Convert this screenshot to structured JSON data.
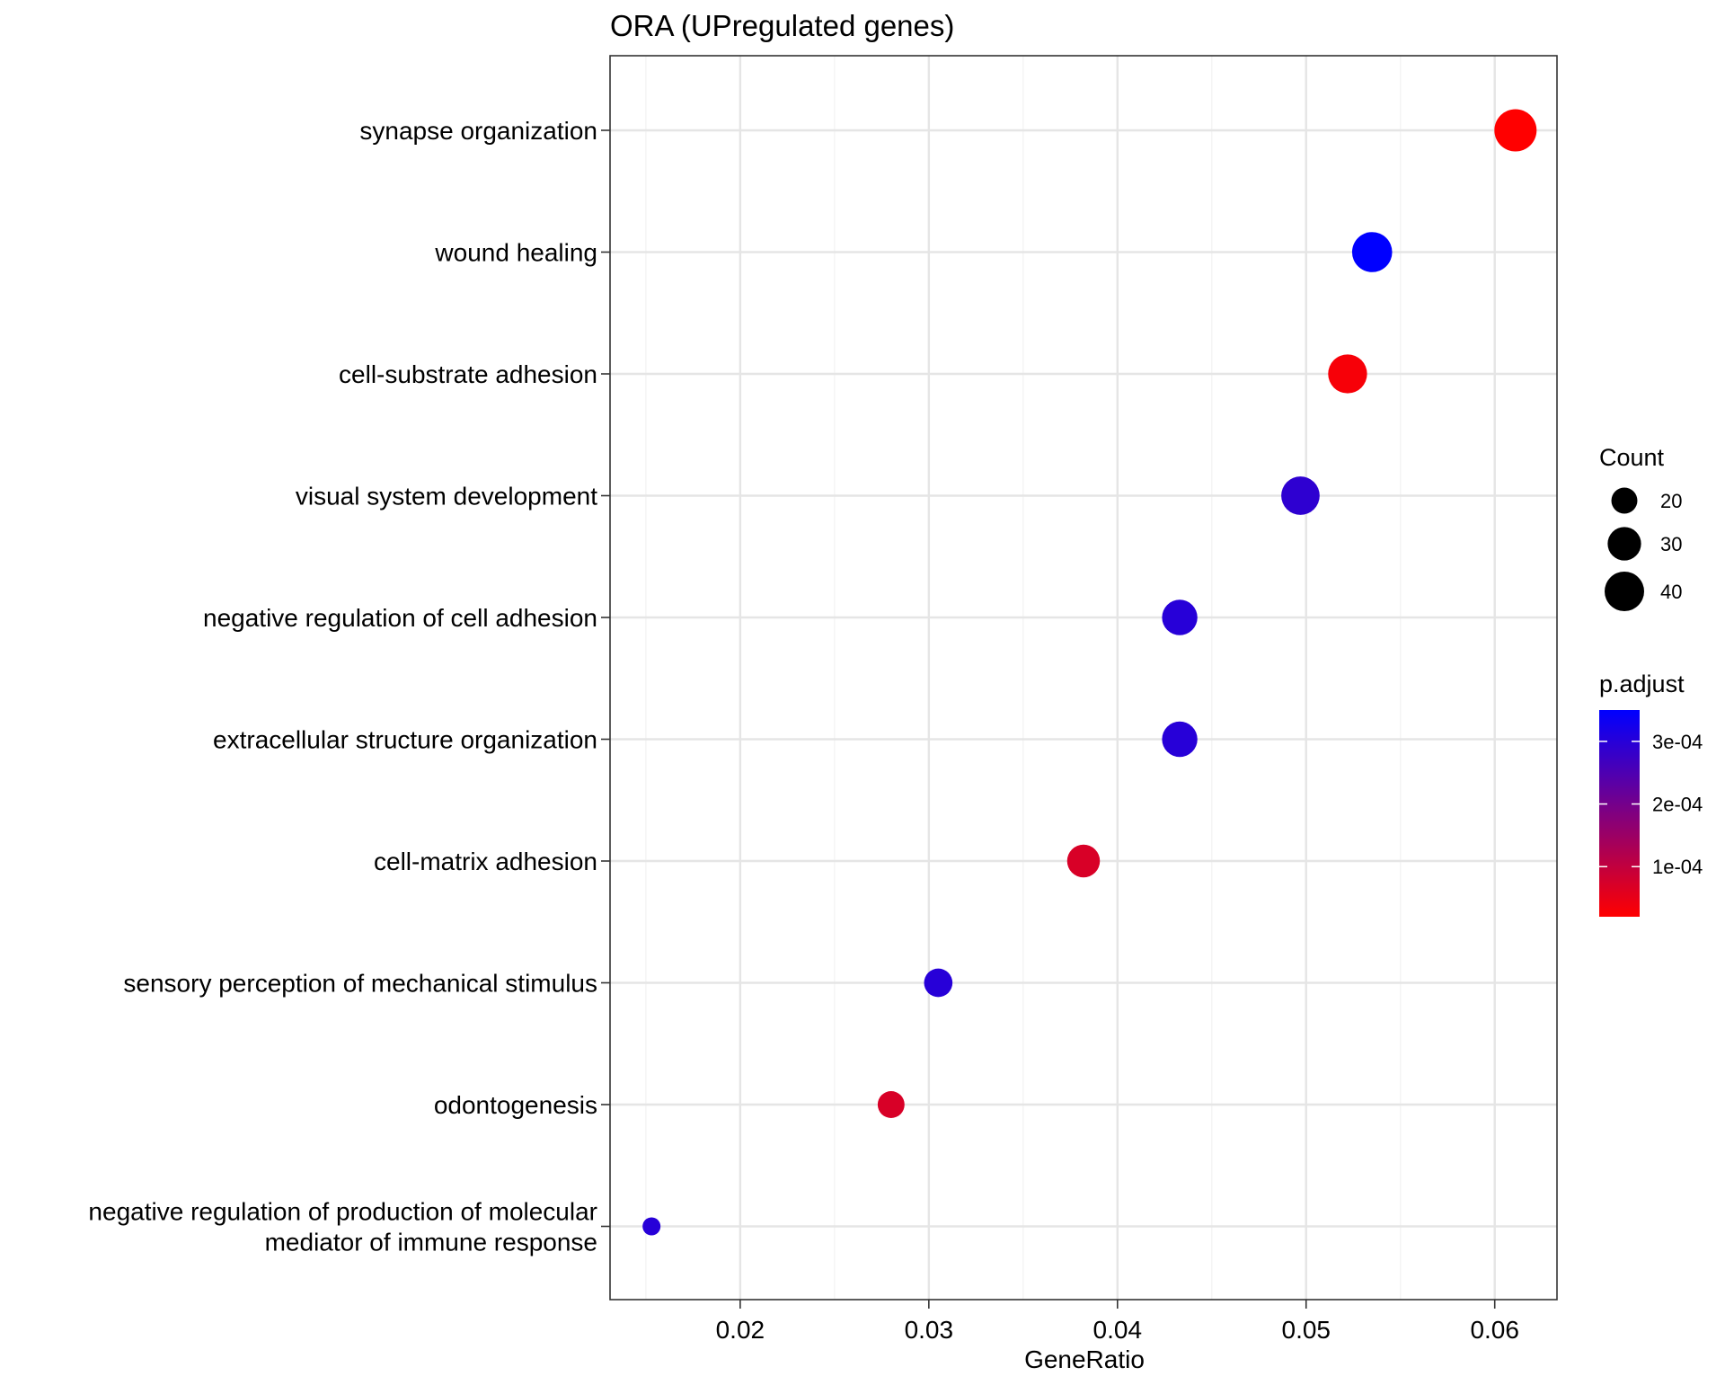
{
  "chart_data": {
    "type": "scatter",
    "title": "ORA (UPregulated genes)",
    "xlabel": "GeneRatio",
    "ylabel": "",
    "xlim": [
      0.0131,
      0.0633
    ],
    "xticks": [
      0.02,
      0.03,
      0.04,
      0.05,
      0.06
    ],
    "xtick_labels": [
      "0.02",
      "0.03",
      "0.04",
      "0.05",
      "0.06"
    ],
    "grid": true,
    "points": [
      {
        "label": "synapse organization",
        "lines": [
          "synapse organization"
        ],
        "gene_ratio": 0.0611,
        "count": 45,
        "p_adjust": 2e-05
      },
      {
        "label": "wound healing",
        "lines": [
          "wound healing"
        ],
        "gene_ratio": 0.0535,
        "count": 41,
        "p_adjust": 0.00035
      },
      {
        "label": "cell-substrate adhesion",
        "lines": [
          "cell-substrate adhesion"
        ],
        "gene_ratio": 0.0522,
        "count": 39,
        "p_adjust": 3e-05
      },
      {
        "label": "visual system development",
        "lines": [
          "visual system development"
        ],
        "gene_ratio": 0.0497,
        "count": 38,
        "p_adjust": 0.00029
      },
      {
        "label": "negative regulation of cell adhesion",
        "lines": [
          "negative regulation of cell adhesion"
        ],
        "gene_ratio": 0.0433,
        "count": 33,
        "p_adjust": 0.0003
      },
      {
        "label": "extracellular structure organization",
        "lines": [
          "extracellular structure organization"
        ],
        "gene_ratio": 0.0433,
        "count": 33,
        "p_adjust": 0.0003
      },
      {
        "label": "cell-matrix adhesion",
        "lines": [
          "cell-matrix adhesion"
        ],
        "gene_ratio": 0.0382,
        "count": 29,
        "p_adjust": 7e-05
      },
      {
        "label": "sensory perception of mechanical stimulus",
        "lines": [
          "sensory perception of mechanical stimulus"
        ],
        "gene_ratio": 0.0305,
        "count": 23,
        "p_adjust": 0.0003
      },
      {
        "label": "odontogenesis",
        "lines": [
          "odontogenesis"
        ],
        "gene_ratio": 0.028,
        "count": 21,
        "p_adjust": 7e-05
      },
      {
        "label": "negative regulation of production of molecular mediator of immune response",
        "lines": [
          "negative regulation of production of molecular",
          "mediator of immune response"
        ],
        "gene_ratio": 0.0153,
        "count": 12,
        "p_adjust": 0.0003
      }
    ],
    "legend": {
      "placement": "right",
      "size_title": "Count",
      "size_breaks": [
        20,
        30,
        40
      ],
      "size_labels": [
        "20",
        "30",
        "40"
      ],
      "color_title": "p.adjust",
      "color_low": "#ff0000",
      "color_high": "#0000ff",
      "color_limits": [
        2e-05,
        0.00035
      ],
      "color_breaks": [
        0.0001,
        0.0002,
        0.0003
      ],
      "color_labels": [
        "1e-04",
        "2e-04",
        "3e-04"
      ]
    }
  }
}
